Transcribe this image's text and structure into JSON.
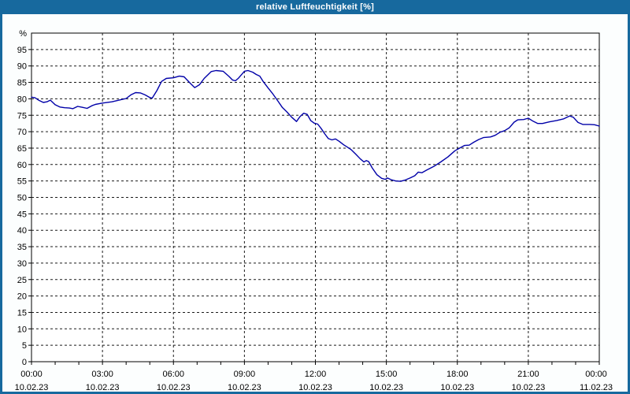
{
  "window": {
    "title": "relative Luftfeuchtigkeit [%]"
  },
  "colors": {
    "titlebar_bg": "#17699E",
    "titlebar_text": "#FFFFFF",
    "frame": "#17699E",
    "content_bg": "#FCFEFE",
    "plot_bg": "#FFFFFF",
    "plot_border": "#000000",
    "grid": "#1a1a1a",
    "tick": "#000000",
    "label_text": "#000000",
    "line": "#0000A8"
  },
  "chart_data": {
    "type": "line",
    "title": "relative Luftfeuchtigkeit [%]",
    "y_unit_label": "%",
    "ylim": [
      0,
      100
    ],
    "ytick_step": 5,
    "ytick_values": [
      0,
      5,
      10,
      15,
      20,
      25,
      30,
      35,
      40,
      45,
      50,
      55,
      60,
      65,
      70,
      75,
      80,
      85,
      90,
      95
    ],
    "grid_style": "dashed",
    "x_hours_span": [
      0,
      24
    ],
    "x_minor_tick_every_hours": 1,
    "x_major_labels": [
      {
        "h": 0,
        "time": "00:00",
        "date": "10.02.23"
      },
      {
        "h": 3,
        "time": "03:00",
        "date": "10.02.23"
      },
      {
        "h": 6,
        "time": "06:00",
        "date": "10.02.23"
      },
      {
        "h": 9,
        "time": "09:00",
        "date": "10.02.23"
      },
      {
        "h": 12,
        "time": "12:00",
        "date": "10.02.23"
      },
      {
        "h": 15,
        "time": "15:00",
        "date": "10.02.23"
      },
      {
        "h": 18,
        "time": "18:00",
        "date": "10.02.23"
      },
      {
        "h": 21,
        "time": "21:00",
        "date": "10.02.23"
      },
      {
        "h": 24,
        "time": "00:00",
        "date": "11.02.23"
      }
    ],
    "legend": null,
    "series": [
      {
        "name": "relative Luftfeuchtigkeit",
        "points": [
          [
            0.0,
            80.5
          ],
          [
            0.15,
            80.3
          ],
          [
            0.3,
            79.6
          ],
          [
            0.5,
            78.9
          ],
          [
            0.65,
            79.1
          ],
          [
            0.8,
            79.6
          ],
          [
            1.0,
            78.2
          ],
          [
            1.2,
            77.5
          ],
          [
            1.4,
            77.3
          ],
          [
            1.6,
            77.2
          ],
          [
            1.75,
            77.0
          ],
          [
            1.95,
            77.7
          ],
          [
            2.15,
            77.4
          ],
          [
            2.35,
            77.1
          ],
          [
            2.55,
            77.9
          ],
          [
            2.7,
            78.3
          ],
          [
            3.0,
            78.7
          ],
          [
            3.4,
            79.1
          ],
          [
            3.75,
            79.7
          ],
          [
            4.0,
            80.1
          ],
          [
            4.2,
            81.2
          ],
          [
            4.4,
            81.9
          ],
          [
            4.6,
            81.8
          ],
          [
            4.8,
            81.2
          ],
          [
            5.0,
            80.4
          ],
          [
            5.1,
            80.2
          ],
          [
            5.3,
            82.5
          ],
          [
            5.5,
            85.3
          ],
          [
            5.7,
            86.2
          ],
          [
            6.0,
            86.4
          ],
          [
            6.25,
            86.9
          ],
          [
            6.45,
            86.7
          ],
          [
            6.7,
            84.8
          ],
          [
            6.9,
            83.4
          ],
          [
            7.1,
            84.3
          ],
          [
            7.3,
            86.2
          ],
          [
            7.6,
            88.3
          ],
          [
            7.8,
            88.6
          ],
          [
            8.1,
            88.4
          ],
          [
            8.35,
            86.8
          ],
          [
            8.5,
            85.7
          ],
          [
            8.62,
            85.5
          ],
          [
            8.75,
            86.3
          ],
          [
            9.0,
            88.4
          ],
          [
            9.15,
            88.6
          ],
          [
            9.35,
            88.1
          ],
          [
            9.5,
            87.4
          ],
          [
            9.65,
            86.9
          ],
          [
            9.8,
            85.2
          ],
          [
            10.0,
            83.3
          ],
          [
            10.2,
            81.5
          ],
          [
            10.4,
            79.5
          ],
          [
            10.6,
            77.4
          ],
          [
            10.8,
            76.0
          ],
          [
            11.0,
            74.4
          ],
          [
            11.2,
            73.1
          ],
          [
            11.35,
            74.6
          ],
          [
            11.5,
            75.6
          ],
          [
            11.65,
            75.3
          ],
          [
            11.8,
            73.4
          ],
          [
            11.95,
            72.6
          ],
          [
            12.1,
            72.3
          ],
          [
            12.25,
            70.9
          ],
          [
            12.4,
            69.3
          ],
          [
            12.55,
            67.9
          ],
          [
            12.7,
            67.5
          ],
          [
            12.85,
            67.8
          ],
          [
            13.0,
            67.1
          ],
          [
            13.2,
            66.0
          ],
          [
            13.35,
            65.3
          ],
          [
            13.5,
            64.6
          ],
          [
            13.7,
            63.2
          ],
          [
            13.9,
            61.7
          ],
          [
            14.05,
            60.8
          ],
          [
            14.15,
            61.2
          ],
          [
            14.25,
            60.9
          ],
          [
            14.4,
            59.0
          ],
          [
            14.6,
            56.9
          ],
          [
            14.8,
            55.8
          ],
          [
            14.95,
            55.5
          ],
          [
            15.05,
            55.9
          ],
          [
            15.2,
            55.4
          ],
          [
            15.4,
            55.0
          ],
          [
            15.6,
            54.9
          ],
          [
            15.8,
            55.3
          ],
          [
            16.0,
            55.9
          ],
          [
            16.2,
            56.6
          ],
          [
            16.35,
            57.7
          ],
          [
            16.5,
            57.5
          ],
          [
            16.7,
            58.3
          ],
          [
            17.0,
            59.4
          ],
          [
            17.3,
            60.8
          ],
          [
            17.6,
            62.3
          ],
          [
            17.9,
            64.2
          ],
          [
            18.1,
            65.0
          ],
          [
            18.3,
            65.8
          ],
          [
            18.5,
            65.9
          ],
          [
            18.7,
            66.8
          ],
          [
            18.9,
            67.6
          ],
          [
            19.1,
            68.2
          ],
          [
            19.4,
            68.4
          ],
          [
            19.6,
            68.9
          ],
          [
            19.8,
            69.8
          ],
          [
            20.0,
            70.3
          ],
          [
            20.2,
            71.2
          ],
          [
            20.4,
            72.9
          ],
          [
            20.55,
            73.6
          ],
          [
            20.8,
            73.7
          ],
          [
            21.0,
            74.1
          ],
          [
            21.2,
            73.2
          ],
          [
            21.4,
            72.5
          ],
          [
            21.6,
            72.5
          ],
          [
            21.9,
            73.0
          ],
          [
            22.2,
            73.4
          ],
          [
            22.5,
            73.9
          ],
          [
            22.75,
            74.8
          ],
          [
            22.9,
            74.4
          ],
          [
            23.1,
            72.8
          ],
          [
            23.3,
            72.2
          ],
          [
            23.6,
            72.2
          ],
          [
            23.8,
            72.1
          ],
          [
            24.0,
            71.7
          ]
        ]
      }
    ]
  }
}
